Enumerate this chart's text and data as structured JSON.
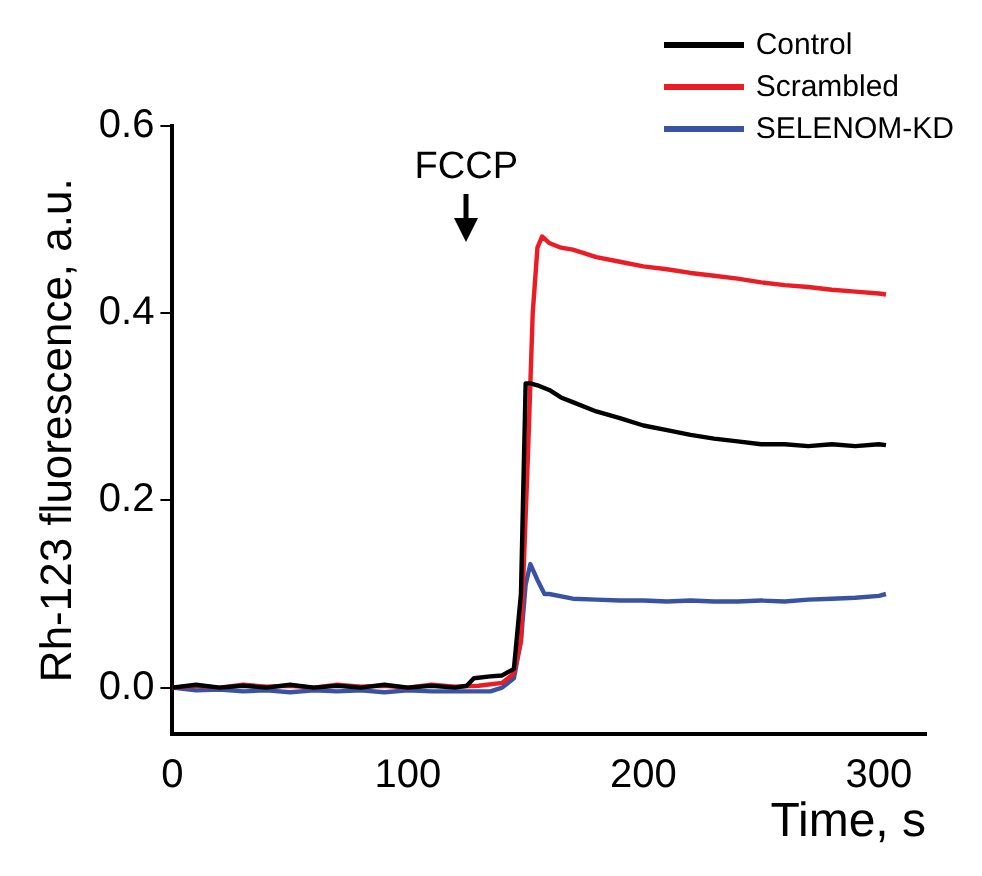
{
  "chart_data": {
    "type": "line",
    "xlabel": "Time, s",
    "ylabel": "Rh-123 fluorescence, a.u.",
    "xlim": [
      0,
      320
    ],
    "xticks": [
      0,
      100,
      200,
      300
    ],
    "ylim": [
      -0.05,
      0.6
    ],
    "yticks": [
      {
        "value": 0,
        "label": "0.0"
      },
      0.2,
      0.4,
      0.6
    ],
    "grid": false,
    "legend": "top right",
    "marker": "none",
    "line_style": "solid",
    "annotations": [
      "FCCP"
    ],
    "series": [
      {
        "name": "Control",
        "color": "#000000",
        "x": [
          0,
          10,
          20,
          30,
          40,
          50,
          60,
          70,
          80,
          90,
          100,
          110,
          120,
          125,
          128,
          135,
          140,
          145,
          148,
          150,
          152,
          155,
          160,
          165,
          170,
          180,
          190,
          200,
          210,
          220,
          230,
          240,
          250,
          260,
          270,
          280,
          290,
          300,
          303
        ],
        "values": [
          0,
          0.003,
          0,
          0.002,
          0,
          0.003,
          0,
          0.002,
          0,
          0.003,
          0,
          0.002,
          0,
          0.002,
          0.01,
          0.012,
          0.013,
          0.02,
          0.1,
          0.325,
          0.325,
          0.323,
          0.318,
          0.31,
          0.305,
          0.295,
          0.288,
          0.28,
          0.275,
          0.27,
          0.266,
          0.263,
          0.26,
          0.26,
          0.258,
          0.26,
          0.258,
          0.26,
          0.259
        ]
      },
      {
        "name": "Scrambled",
        "color": "#ed1c24",
        "x": [
          0,
          10,
          20,
          30,
          40,
          50,
          60,
          70,
          80,
          90,
          100,
          110,
          120,
          130,
          140,
          145,
          148,
          151,
          153,
          155,
          157,
          160,
          165,
          170,
          180,
          190,
          200,
          210,
          220,
          230,
          240,
          250,
          260,
          270,
          280,
          290,
          300,
          303
        ],
        "values": [
          0,
          0.002,
          0,
          0.003,
          0.001,
          0.002,
          0,
          0.003,
          0.001,
          0.002,
          0,
          0.003,
          0.001,
          0.002,
          0.005,
          0.015,
          0.05,
          0.25,
          0.4,
          0.47,
          0.482,
          0.475,
          0.47,
          0.468,
          0.46,
          0.455,
          0.45,
          0.447,
          0.443,
          0.44,
          0.437,
          0.433,
          0.43,
          0.428,
          0.425,
          0.423,
          0.421,
          0.42
        ]
      },
      {
        "name": "SELENOM-KD",
        "color": "#3953a4",
        "x": [
          0,
          10,
          20,
          30,
          40,
          50,
          60,
          70,
          80,
          90,
          100,
          110,
          120,
          130,
          135,
          140,
          145,
          148,
          150,
          152,
          155,
          158,
          160,
          170,
          180,
          190,
          200,
          210,
          220,
          230,
          240,
          250,
          260,
          270,
          280,
          290,
          300,
          303
        ],
        "values": [
          0,
          -0.003,
          -0.002,
          -0.004,
          -0.003,
          -0.005,
          -0.003,
          -0.004,
          -0.003,
          -0.005,
          -0.003,
          -0.004,
          -0.004,
          -0.004,
          -0.004,
          0,
          0.01,
          0.05,
          0.11,
          0.132,
          0.115,
          0.1,
          0.1,
          0.095,
          0.094,
          0.093,
          0.093,
          0.092,
          0.093,
          0.092,
          0.092,
          0.093,
          0.092,
          0.094,
          0.095,
          0.096,
          0.098,
          0.1
        ]
      }
    ]
  }
}
